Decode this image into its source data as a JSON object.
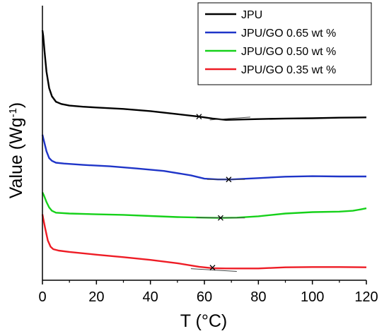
{
  "chart_data": {
    "type": "line",
    "title": "",
    "xlabel": "T (°C)",
    "ylabel_main": "Value (Wg",
    "ylabel_sup": "-1",
    "ylabel_close": ")",
    "xlim": [
      0,
      120
    ],
    "ylim": [
      0,
      100
    ],
    "x_ticks": [
      0,
      20,
      40,
      60,
      80,
      100,
      120
    ],
    "y_ticks_labeled": false,
    "grid": false,
    "legend_position": "top-right",
    "series": [
      {
        "name": "JPU",
        "color": "#000000",
        "points": [
          [
            0.0,
            91
          ],
          [
            0.3,
            89
          ],
          [
            0.8,
            83
          ],
          [
            1.5,
            76
          ],
          [
            2.5,
            70
          ],
          [
            3.5,
            67
          ],
          [
            5,
            65
          ],
          [
            7,
            64.2
          ],
          [
            10,
            63.6
          ],
          [
            15,
            63.2
          ],
          [
            20,
            62.9
          ],
          [
            30,
            62.4
          ],
          [
            40,
            61.6
          ],
          [
            50,
            60.5
          ],
          [
            58,
            59.6
          ],
          [
            63,
            58.9
          ],
          [
            68,
            58.4
          ],
          [
            72,
            58.5
          ],
          [
            80,
            58.7
          ],
          [
            90,
            58.9
          ],
          [
            100,
            59.0
          ],
          [
            110,
            59.2
          ],
          [
            120,
            59.3
          ]
        ],
        "markers": [
          [
            58,
            59.6
          ]
        ],
        "tangents": [
          [
            62,
            58.4
          ],
          [
            77,
            59.4
          ]
        ]
      },
      {
        "name": "JPU/GO 0.65 wt %",
        "color": "#1f35c8",
        "points": [
          [
            0.0,
            53
          ],
          [
            0.5,
            51
          ],
          [
            1.5,
            47
          ],
          [
            2.5,
            44.5
          ],
          [
            3.5,
            43.5
          ],
          [
            5,
            42.8
          ],
          [
            8,
            42.5
          ],
          [
            15,
            42.0
          ],
          [
            25,
            41.5
          ],
          [
            35,
            40.7
          ],
          [
            45,
            39.8
          ],
          [
            55,
            38.2
          ],
          [
            60,
            37.0
          ],
          [
            65,
            36.7
          ],
          [
            70,
            36.7
          ],
          [
            80,
            37.2
          ],
          [
            90,
            37.7
          ],
          [
            100,
            37.9
          ],
          [
            110,
            37.8
          ],
          [
            120,
            37.8
          ]
        ],
        "markers": [
          [
            69,
            36.7
          ]
        ],
        "tangents": [
          [
            61,
            36.7
          ],
          [
            75,
            36.7
          ]
        ]
      },
      {
        "name": "JPU/GO 0.50 wt %",
        "color": "#16d11a",
        "points": [
          [
            0.0,
            32
          ],
          [
            0.5,
            31
          ],
          [
            1.5,
            28.5
          ],
          [
            2.5,
            26.5
          ],
          [
            3.5,
            25.3
          ],
          [
            5,
            24.6
          ],
          [
            10,
            24.3
          ],
          [
            20,
            24.0
          ],
          [
            30,
            23.8
          ],
          [
            40,
            23.4
          ],
          [
            50,
            23.0
          ],
          [
            60,
            22.8
          ],
          [
            66,
            22.7
          ],
          [
            72,
            22.8
          ],
          [
            80,
            23.3
          ],
          [
            90,
            24.3
          ],
          [
            100,
            24.8
          ],
          [
            110,
            25.0
          ],
          [
            115,
            25.3
          ],
          [
            118,
            25.8
          ],
          [
            120,
            26.2
          ]
        ],
        "markers": [
          [
            66,
            22.7
          ]
        ],
        "tangents": [
          [
            57,
            22.8
          ],
          [
            75,
            22.7
          ]
        ]
      },
      {
        "name": "JPU/GO 0.35 wt %",
        "color": "#ee1c25",
        "points": [
          [
            0.0,
            24
          ],
          [
            0.3,
            22.5
          ],
          [
            1,
            19
          ],
          [
            2,
            14.5
          ],
          [
            3,
            12.2
          ],
          [
            4,
            11.3
          ],
          [
            6,
            10.8
          ],
          [
            10,
            10.3
          ],
          [
            20,
            9.3
          ],
          [
            30,
            8.4
          ],
          [
            40,
            7.4
          ],
          [
            50,
            6.2
          ],
          [
            58,
            4.9
          ],
          [
            63,
            4.4
          ],
          [
            68,
            4.3
          ],
          [
            75,
            4.3
          ],
          [
            80,
            4.3
          ],
          [
            90,
            4.7
          ],
          [
            100,
            4.8
          ],
          [
            110,
            4.8
          ],
          [
            120,
            4.7
          ]
        ],
        "markers": [
          [
            63,
            4.6
          ]
        ],
        "tangents": [
          [
            55,
            4.2
          ],
          [
            72,
            3.2
          ]
        ]
      }
    ]
  }
}
